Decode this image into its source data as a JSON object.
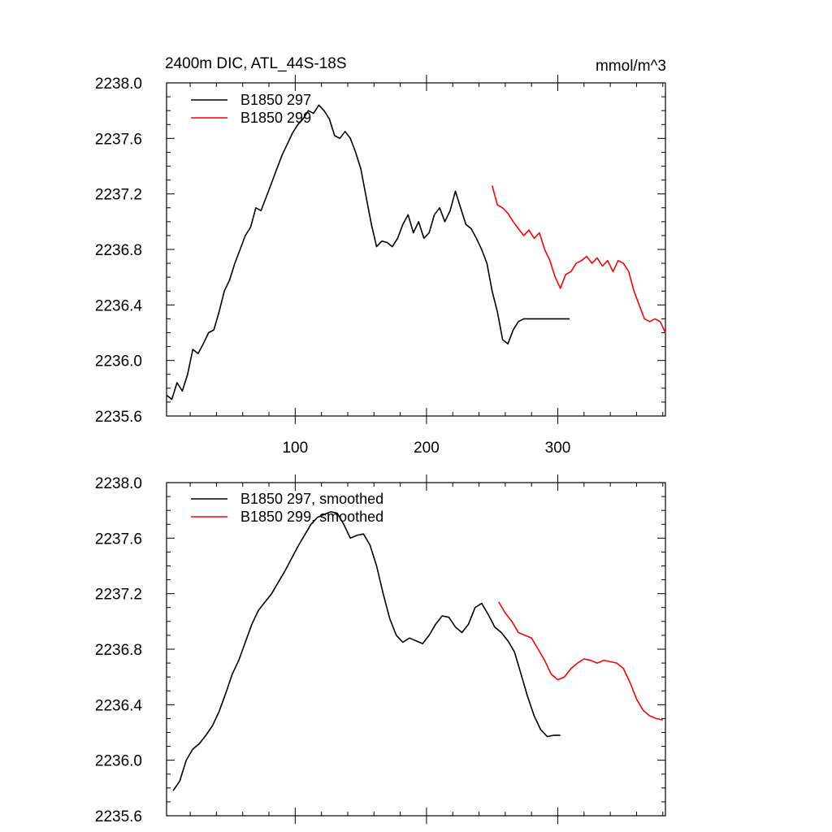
{
  "chart_data": [
    {
      "type": "line",
      "title": "2400m DIC, ATL_44S-18S",
      "units": "mmol/m^3",
      "xlim": [
        2,
        382
      ],
      "ylim": [
        2235.6,
        2238.0
      ],
      "xticks": [
        100,
        200,
        300
      ],
      "xtick_labels": [
        "100",
        "200",
        "300"
      ],
      "yticks": [
        2235.6,
        2236.0,
        2236.4,
        2236.8,
        2237.2,
        2237.6,
        2238.0
      ],
      "ytick_labels": [
        "2235.6",
        "2236.0",
        "2236.4",
        "2236.8",
        "2237.2",
        "2237.6",
        "2238.0"
      ],
      "legend_position": "top-left",
      "series": [
        {
          "name": "B1850 297",
          "color": "#000000",
          "x": [
            2,
            6,
            10,
            14,
            18,
            22,
            26,
            30,
            34,
            38,
            42,
            46,
            50,
            54,
            58,
            62,
            66,
            70,
            74,
            78,
            82,
            86,
            90,
            94,
            98,
            102,
            106,
            110,
            114,
            118,
            122,
            126,
            130,
            134,
            138,
            142,
            146,
            150,
            154,
            158,
            162,
            166,
            170,
            174,
            178,
            182,
            186,
            190,
            194,
            198,
            202,
            206,
            210,
            214,
            218,
            222,
            226,
            230,
            234,
            238,
            242,
            246,
            250,
            254,
            258,
            262,
            266,
            270,
            274,
            278,
            282,
            286,
            290,
            294,
            298,
            302,
            306,
            309
          ],
          "y": [
            2235.75,
            2235.72,
            2235.84,
            2235.78,
            2235.9,
            2236.08,
            2236.05,
            2236.12,
            2236.2,
            2236.22,
            2236.35,
            2236.5,
            2236.58,
            2236.7,
            2236.8,
            2236.9,
            2236.96,
            2237.1,
            2237.08,
            2237.18,
            2237.28,
            2237.38,
            2237.48,
            2237.56,
            2237.64,
            2237.7,
            2237.74,
            2237.8,
            2237.78,
            2237.84,
            2237.8,
            2237.74,
            2237.62,
            2237.6,
            2237.65,
            2237.6,
            2237.5,
            2237.38,
            2237.18,
            2236.98,
            2236.82,
            2236.86,
            2236.85,
            2236.82,
            2236.88,
            2236.98,
            2237.05,
            2236.92,
            2237.0,
            2236.88,
            2236.92,
            2237.05,
            2237.1,
            2237.0,
            2237.08,
            2237.22,
            2237.1,
            2236.98,
            2236.95,
            2236.88,
            2236.8,
            2236.7,
            2236.5,
            2236.35,
            2236.15,
            2236.12,
            2236.22,
            2236.28,
            2236.3,
            2236.3,
            2236.3,
            2236.3,
            2236.3,
            2236.3,
            2236.3,
            2236.3,
            2236.3,
            2236.3
          ]
        },
        {
          "name": "B1850 299",
          "color": "#ff0000",
          "x": [
            250,
            254,
            258,
            262,
            266,
            270,
            274,
            278,
            282,
            286,
            290,
            294,
            298,
            302,
            306,
            310,
            314,
            318,
            322,
            326,
            330,
            334,
            338,
            342,
            346,
            350,
            354,
            358,
            362,
            366,
            370,
            374,
            378,
            382
          ],
          "y": [
            2237.26,
            2237.12,
            2237.1,
            2237.06,
            2237.0,
            2236.95,
            2236.9,
            2236.94,
            2236.88,
            2236.92,
            2236.8,
            2236.72,
            2236.6,
            2236.52,
            2236.62,
            2236.64,
            2236.7,
            2236.72,
            2236.75,
            2236.7,
            2236.74,
            2236.68,
            2236.72,
            2236.64,
            2236.72,
            2236.7,
            2236.64,
            2236.5,
            2236.4,
            2236.3,
            2236.28,
            2236.3,
            2236.28,
            2236.2
          ]
        }
      ]
    },
    {
      "type": "line",
      "xlim": [
        2,
        382
      ],
      "ylim": [
        2235.6,
        2238.0
      ],
      "xticks": [
        100,
        200,
        300
      ],
      "yticks": [
        2235.6,
        2236.0,
        2236.4,
        2236.8,
        2237.2,
        2237.6,
        2238.0
      ],
      "ytick_labels": [
        "2235.6",
        "2236.0",
        "2236.4",
        "2236.8",
        "2237.2",
        "2237.6",
        "2238.0"
      ],
      "legend_position": "top-left",
      "series": [
        {
          "name": "B1850 297, smoothed",
          "color": "#000000",
          "x": [
            7,
            12,
            17,
            22,
            27,
            32,
            37,
            42,
            47,
            52,
            57,
            62,
            67,
            72,
            77,
            82,
            87,
            92,
            97,
            102,
            107,
            112,
            117,
            122,
            127,
            132,
            137,
            142,
            147,
            152,
            157,
            162,
            167,
            172,
            177,
            182,
            187,
            192,
            197,
            202,
            207,
            212,
            217,
            222,
            227,
            232,
            237,
            242,
            247,
            252,
            257,
            262,
            267,
            272,
            277,
            282,
            287,
            292,
            297,
            302
          ],
          "y": [
            2235.78,
            2235.85,
            2236.0,
            2236.08,
            2236.12,
            2236.18,
            2236.25,
            2236.35,
            2236.48,
            2236.62,
            2236.72,
            2236.85,
            2236.98,
            2237.08,
            2237.14,
            2237.2,
            2237.28,
            2237.36,
            2237.45,
            2237.54,
            2237.62,
            2237.7,
            2237.75,
            2237.77,
            2237.79,
            2237.78,
            2237.7,
            2237.6,
            2237.62,
            2237.63,
            2237.55,
            2237.4,
            2237.2,
            2237.02,
            2236.9,
            2236.85,
            2236.88,
            2236.86,
            2236.84,
            2236.9,
            2236.98,
            2237.04,
            2237.03,
            2236.96,
            2236.92,
            2236.98,
            2237.1,
            2237.13,
            2237.05,
            2236.96,
            2236.92,
            2236.86,
            2236.78,
            2236.62,
            2236.46,
            2236.32,
            2236.22,
            2236.17,
            2236.18,
            2236.18
          ]
        },
        {
          "name": "B1850 299, smoothed",
          "color": "#ff0000",
          "x": [
            255,
            260,
            265,
            270,
            275,
            280,
            285,
            290,
            295,
            300,
            305,
            310,
            315,
            320,
            325,
            330,
            335,
            340,
            345,
            350,
            355,
            360,
            365,
            370,
            375,
            380
          ],
          "y": [
            2237.14,
            2237.06,
            2237.0,
            2236.92,
            2236.9,
            2236.88,
            2236.8,
            2236.72,
            2236.62,
            2236.58,
            2236.6,
            2236.66,
            2236.7,
            2236.73,
            2236.72,
            2236.7,
            2236.72,
            2236.71,
            2236.7,
            2236.66,
            2236.56,
            2236.44,
            2236.36,
            2236.32,
            2236.3,
            2236.29
          ]
        }
      ]
    }
  ]
}
